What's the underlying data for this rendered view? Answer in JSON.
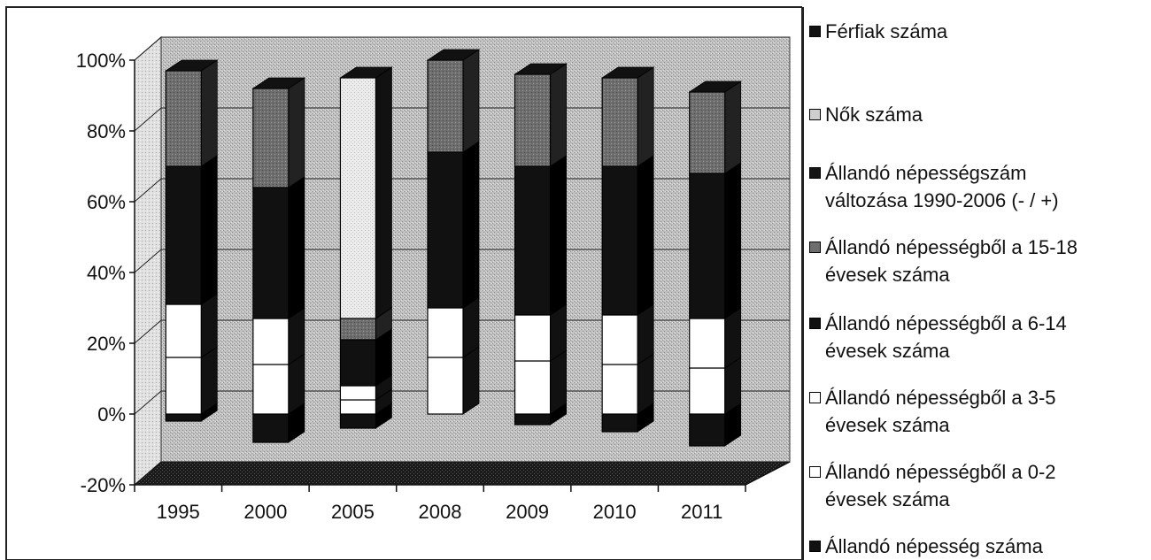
{
  "chart_data": {
    "type": "bar",
    "stacked": true,
    "normalized_percent": true,
    "categories": [
      "1995",
      "2000",
      "2005",
      "2008",
      "2009",
      "2010",
      "2011"
    ],
    "ylim": [
      -20,
      100
    ],
    "yticks": [
      "100%",
      "80%",
      "60%",
      "40%",
      "20%",
      "0%",
      "-20%"
    ],
    "yticks_values": [
      100,
      80,
      60,
      40,
      20,
      0,
      -20
    ],
    "grid": true,
    "legend_position": "right",
    "series_legend_order": [
      {
        "name": "Férfiak száma",
        "color": "#111111",
        "swatch": "#111111"
      },
      {
        "name": "Nők száma",
        "color": "#d9d9d9",
        "swatch": "#cfcfcf"
      },
      {
        "name": "Állandó népességszám\nváltozása 1990-2006 (- / +)",
        "color": "#151515",
        "swatch": "#151515"
      },
      {
        "name": "Állandó népességből a 15-18\névesek száma",
        "color": "#6e6e6e",
        "swatch": "#6e6e6e"
      },
      {
        "name": "Állandó népességből a 6-14\névesek száma",
        "color": "#111111",
        "swatch": "#111111"
      },
      {
        "name": "Állandó népességből a 3-5\névesek száma",
        "color": "#ffffff",
        "swatch": "#ffffff"
      },
      {
        "name": "Állandó népességből a 0-2\névesek száma",
        "color": "#ffffff",
        "swatch": "#ffffff"
      },
      {
        "name": "Állandó népesség száma",
        "color": "#111111",
        "swatch": "#111111"
      }
    ],
    "stacks": [
      {
        "category": "1995",
        "neg": -2,
        "segments": [
          {
            "series": "0-2",
            "value": 16,
            "color": "#ffffff"
          },
          {
            "series": "3-5",
            "value": 15,
            "color": "#ffffff"
          },
          {
            "series": "6-14",
            "value": 39,
            "color": "#111111"
          },
          {
            "series": "15-18",
            "value": 27,
            "color": "#6e6e6e"
          }
        ]
      },
      {
        "category": "2000",
        "neg": -8,
        "segments": [
          {
            "series": "0-2",
            "value": 14,
            "color": "#ffffff"
          },
          {
            "series": "3-5",
            "value": 13,
            "color": "#ffffff"
          },
          {
            "series": "6-14",
            "value": 37,
            "color": "#111111"
          },
          {
            "series": "15-18",
            "value": 28,
            "color": "#6e6e6e"
          }
        ]
      },
      {
        "category": "2005",
        "neg": -4,
        "segments": [
          {
            "series": "0-2",
            "value": 4,
            "color": "#ffffff"
          },
          {
            "series": "3-5",
            "value": 4,
            "color": "#ffffff"
          },
          {
            "series": "6-14",
            "value": 13,
            "color": "#111111"
          },
          {
            "series": "15-18",
            "value": 6,
            "color": "#6e6e6e"
          },
          {
            "series": "Nők száma",
            "value": 68,
            "color": "#e8e8e8"
          }
        ]
      },
      {
        "category": "2008",
        "neg": 0,
        "segments": [
          {
            "series": "0-2",
            "value": 16,
            "color": "#ffffff"
          },
          {
            "series": "3-5",
            "value": 14,
            "color": "#ffffff"
          },
          {
            "series": "6-14",
            "value": 44,
            "color": "#111111"
          },
          {
            "series": "15-18",
            "value": 26,
            "color": "#6e6e6e"
          }
        ]
      },
      {
        "category": "2009",
        "neg": -3,
        "segments": [
          {
            "series": "0-2",
            "value": 15,
            "color": "#ffffff"
          },
          {
            "series": "3-5",
            "value": 13,
            "color": "#ffffff"
          },
          {
            "series": "6-14",
            "value": 42,
            "color": "#111111"
          },
          {
            "series": "15-18",
            "value": 26,
            "color": "#6e6e6e"
          }
        ]
      },
      {
        "category": "2010",
        "neg": -5,
        "segments": [
          {
            "series": "0-2",
            "value": 14,
            "color": "#ffffff"
          },
          {
            "series": "3-5",
            "value": 14,
            "color": "#ffffff"
          },
          {
            "series": "6-14",
            "value": 42,
            "color": "#111111"
          },
          {
            "series": "15-18",
            "value": 25,
            "color": "#6e6e6e"
          }
        ]
      },
      {
        "category": "2011",
        "neg": -9,
        "segments": [
          {
            "series": "0-2",
            "value": 13,
            "color": "#ffffff"
          },
          {
            "series": "3-5",
            "value": 14,
            "color": "#ffffff"
          },
          {
            "series": "6-14",
            "value": 41,
            "color": "#111111"
          },
          {
            "series": "15-18",
            "value": 23,
            "color": "#6e6e6e"
          }
        ]
      }
    ]
  },
  "legend": {
    "items": [
      {
        "label": "Férfiak száma"
      },
      {
        "label": "Nők száma"
      },
      {
        "label": "Állandó népességszám\nváltozása 1990-2006 (- / +)"
      },
      {
        "label": "Állandó népességből a 15-18\névesek száma"
      },
      {
        "label": "Állandó népességből a 6-14\névesek száma"
      },
      {
        "label": "Állandó népességből a 3-5\névesek száma"
      },
      {
        "label": "Állandó népességből a 0-2\névesek száma"
      },
      {
        "label": "Állandó népesség száma"
      }
    ]
  }
}
